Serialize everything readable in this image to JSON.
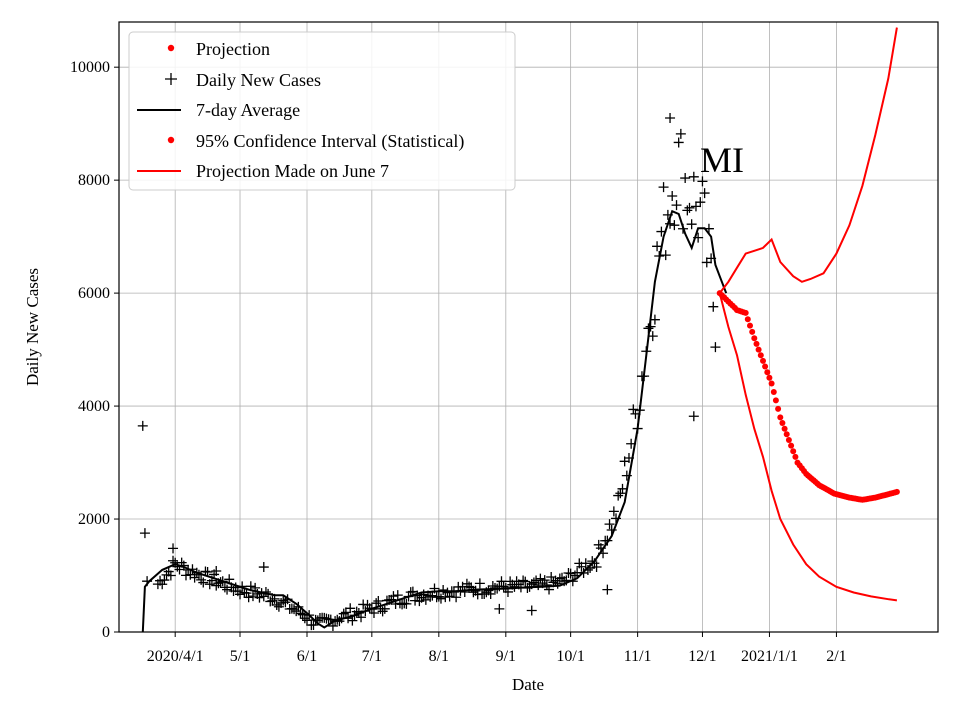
{
  "chart_data": {
    "type": "line",
    "title": "",
    "xlabel": "Date",
    "ylabel": "Daily New Cases",
    "annotation": "MI",
    "ylim": [
      0,
      10800
    ],
    "xlim_day": [
      -26,
      353
    ],
    "grid": true,
    "legend_position": "top-left",
    "x_ticks": [
      {
        "label": "2020/4/1",
        "day": 0
      },
      {
        "label": "5/1",
        "day": 30
      },
      {
        "label": "6/1",
        "day": 61
      },
      {
        "label": "7/1",
        "day": 91
      },
      {
        "label": "8/1",
        "day": 122
      },
      {
        "label": "9/1",
        "day": 153
      },
      {
        "label": "10/1",
        "day": 183
      },
      {
        "label": "11/1",
        "day": 214
      },
      {
        "label": "12/1",
        "day": 244
      },
      {
        "label": "2021/1/1",
        "day": 275
      },
      {
        "label": "2/1",
        "day": 306
      }
    ],
    "y_ticks": [
      {
        "label": "0",
        "value": 0
      },
      {
        "label": "2000",
        "value": 2000
      },
      {
        "label": "4000",
        "value": 4000
      },
      {
        "label": "6000",
        "value": 6000
      },
      {
        "label": "8000",
        "value": 8000
      },
      {
        "label": "10000",
        "value": 10000
      }
    ],
    "legend": [
      {
        "label": "Projection",
        "marker": "dot",
        "color": "#ff0000"
      },
      {
        "label": "Daily New Cases",
        "marker": "plus",
        "color": "#000000"
      },
      {
        "label": "7-day Average",
        "marker": "line",
        "color": "#000000"
      },
      {
        "label": "95% Confidence Interval (Statistical)",
        "marker": "dot",
        "color": "#ff0000"
      },
      {
        "label": "Projection Made on June 7",
        "marker": "line",
        "color": "#ff0000"
      }
    ],
    "series": [
      {
        "name": "Daily New Cases",
        "style": "plus",
        "color": "#000000",
        "anchors": [
          [
            -8,
            850
          ],
          [
            0,
            1200
          ],
          [
            15,
            950
          ],
          [
            30,
            750
          ],
          [
            45,
            620
          ],
          [
            60,
            300
          ],
          [
            66,
            120
          ],
          [
            75,
            250
          ],
          [
            90,
            400
          ],
          [
            105,
            600
          ],
          [
            120,
            700
          ],
          [
            135,
            750
          ],
          [
            150,
            800
          ],
          [
            165,
            800
          ],
          [
            180,
            900
          ],
          [
            195,
            1300
          ],
          [
            205,
            2200
          ],
          [
            214,
            4000
          ],
          [
            225,
            7000
          ],
          [
            232,
            8300
          ],
          [
            238,
            7800
          ],
          [
            244,
            7300
          ],
          [
            250,
            5600
          ]
        ],
        "extra_points": [
          [
            -15,
            3650
          ],
          [
            -14,
            1750
          ],
          [
            -13,
            900
          ],
          [
            -1,
            1480
          ],
          [
            19,
            1080
          ],
          [
            41,
            1150
          ],
          [
            150,
            410
          ],
          [
            165,
            380
          ],
          [
            200,
            750
          ],
          [
            240,
            3820
          ],
          [
            229,
            9100
          ]
        ]
      },
      {
        "name": "7-day Average",
        "style": "line",
        "color": "#000000",
        "points": [
          [
            -15,
            0
          ],
          [
            -14,
            800
          ],
          [
            -12,
            900
          ],
          [
            -6,
            1100
          ],
          [
            0,
            1200
          ],
          [
            4,
            1150
          ],
          [
            10,
            1050
          ],
          [
            18,
            950
          ],
          [
            26,
            850
          ],
          [
            34,
            750
          ],
          [
            40,
            700
          ],
          [
            46,
            650
          ],
          [
            50,
            650
          ],
          [
            56,
            500
          ],
          [
            62,
            300
          ],
          [
            66,
            150
          ],
          [
            69,
            80
          ],
          [
            74,
            200
          ],
          [
            82,
            280
          ],
          [
            90,
            400
          ],
          [
            98,
            500
          ],
          [
            106,
            600
          ],
          [
            114,
            700
          ],
          [
            122,
            720
          ],
          [
            130,
            720
          ],
          [
            138,
            750
          ],
          [
            146,
            760
          ],
          [
            154,
            770
          ],
          [
            162,
            790
          ],
          [
            170,
            800
          ],
          [
            178,
            820
          ],
          [
            186,
            950
          ],
          [
            194,
            1250
          ],
          [
            202,
            1700
          ],
          [
            208,
            2300
          ],
          [
            214,
            3600
          ],
          [
            218,
            4900
          ],
          [
            222,
            6200
          ],
          [
            226,
            7000
          ],
          [
            230,
            7450
          ],
          [
            233,
            7400
          ],
          [
            236,
            7050
          ],
          [
            239,
            6800
          ],
          [
            242,
            7150
          ],
          [
            245,
            7150
          ],
          [
            248,
            7000
          ],
          [
            250,
            6500
          ],
          [
            252,
            6300
          ],
          [
            255,
            6000
          ]
        ]
      },
      {
        "name": "Projection",
        "style": "dot",
        "color": "#ff0000",
        "points": [
          [
            252,
            6000
          ],
          [
            256,
            5850
          ],
          [
            260,
            5700
          ],
          [
            264,
            5650
          ],
          [
            268,
            5200
          ],
          [
            272,
            4800
          ],
          [
            276,
            4400
          ],
          [
            280,
            3800
          ],
          [
            284,
            3400
          ],
          [
            288,
            3000
          ],
          [
            292,
            2800
          ],
          [
            298,
            2600
          ],
          [
            305,
            2450
          ],
          [
            312,
            2380
          ],
          [
            318,
            2340
          ],
          [
            324,
            2380
          ],
          [
            330,
            2440
          ],
          [
            334,
            2480
          ]
        ]
      },
      {
        "name": "95% Confidence Interval (Statistical)",
        "style": "line",
        "color": "#ff0000",
        "band": "upper",
        "points": [
          [
            252,
            6000
          ],
          [
            256,
            6200
          ],
          [
            260,
            6450
          ],
          [
            264,
            6700
          ],
          [
            268,
            6750
          ],
          [
            272,
            6800
          ],
          [
            276,
            6950
          ],
          [
            280,
            6550
          ],
          [
            286,
            6300
          ],
          [
            290,
            6200
          ],
          [
            294,
            6250
          ],
          [
            300,
            6350
          ],
          [
            306,
            6700
          ],
          [
            312,
            7200
          ],
          [
            318,
            7900
          ],
          [
            324,
            8800
          ],
          [
            330,
            9800
          ],
          [
            334,
            10700
          ]
        ]
      },
      {
        "name": "Projection Made on June 7",
        "style": "line",
        "color": "#ff0000",
        "band": "lower",
        "points": [
          [
            252,
            6000
          ],
          [
            256,
            5400
          ],
          [
            260,
            4900
          ],
          [
            264,
            4200
          ],
          [
            268,
            3600
          ],
          [
            272,
            3100
          ],
          [
            276,
            2500
          ],
          [
            280,
            2000
          ],
          [
            286,
            1550
          ],
          [
            292,
            1200
          ],
          [
            298,
            980
          ],
          [
            306,
            800
          ],
          [
            314,
            700
          ],
          [
            322,
            630
          ],
          [
            330,
            580
          ],
          [
            334,
            560
          ]
        ]
      }
    ]
  }
}
